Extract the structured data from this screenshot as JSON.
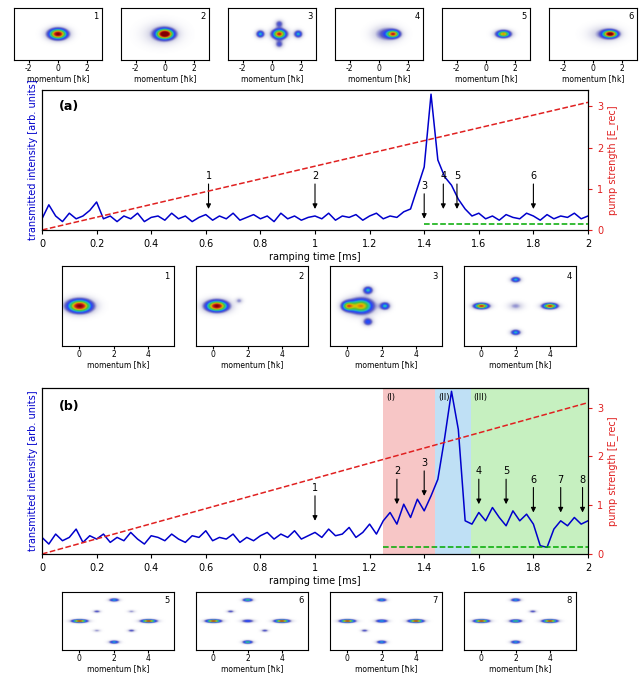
{
  "chart_data": [
    {
      "type": "image",
      "title": "1",
      "xlabel": "momentum [ħk]",
      "xlim": [
        -3,
        3
      ],
      "ylim": [
        -1.5,
        1.5
      ],
      "xticks": [
        -2,
        0,
        2
      ],
      "tick_labels": "x",
      "peaks": [
        [
          0,
          0,
          0.45,
          0.22,
          1.0
        ]
      ]
    },
    {
      "type": "image",
      "title": "2",
      "xlabel": "momentum [ħk]",
      "xlim": [
        -3,
        3
      ],
      "ylim": [
        -1.5,
        1.5
      ],
      "xticks": [
        -2,
        0,
        2
      ],
      "tick_labels": "x",
      "peaks": [
        [
          0,
          0,
          0.4,
          0.2,
          1.0
        ],
        [
          -0.2,
          0,
          0.8,
          0.4,
          0.2
        ]
      ]
    },
    {
      "type": "image",
      "title": "3",
      "xlabel": "momentum [ħk]",
      "xlim": [
        -3,
        3
      ],
      "ylim": [
        -1.5,
        1.5
      ],
      "xticks": [
        -2,
        0,
        2
      ],
      "tick_labels": "x",
      "peaks": [
        [
          0.5,
          0,
          0.35,
          0.2,
          0.9
        ],
        [
          -0.8,
          0,
          0.2,
          0.15,
          0.5
        ],
        [
          1.8,
          0,
          0.2,
          0.15,
          0.5
        ],
        [
          0.5,
          0.6,
          0.2,
          0.15,
          0.3
        ],
        [
          0.5,
          -0.6,
          0.2,
          0.15,
          0.3
        ]
      ]
    },
    {
      "type": "image",
      "title": "4",
      "xlabel": "momentum [ħk]",
      "xlim": [
        -3,
        3
      ],
      "ylim": [
        -1.5,
        1.5
      ],
      "xticks": [
        -2,
        0,
        2
      ],
      "tick_labels": "x",
      "peaks": [
        [
          1,
          0,
          0.3,
          0.15,
          0.7
        ],
        [
          0.5,
          0,
          0.6,
          0.3,
          0.3
        ]
      ]
    },
    {
      "type": "image",
      "title": "5",
      "xlabel": "momentum [ħk]",
      "xlim": [
        -3,
        3
      ],
      "ylim": [
        -1.5,
        1.5
      ],
      "xticks": [
        -2,
        0,
        2
      ],
      "tick_labels": "x",
      "peaks": [
        [
          1.2,
          0,
          0.35,
          0.15,
          0.8
        ]
      ]
    },
    {
      "type": "image",
      "title": "6",
      "xlabel": "momentum [ħk]",
      "xlim": [
        -3,
        3
      ],
      "ylim": [
        -1.5,
        1.5
      ],
      "xticks": [
        -2,
        0,
        2
      ],
      "tick_labels": "x",
      "peaks": [
        [
          1.2,
          0,
          0.35,
          0.15,
          0.9
        ],
        [
          0.8,
          0,
          0.7,
          0.3,
          0.2
        ]
      ]
    },
    {
      "type": "line",
      "title": "(a)",
      "xlabel": "ramping time [ms]",
      "ylabel": "transmitted intensity [arb. units]",
      "y2label": "pump strength [E_rec]",
      "xlim": [
        0,
        2
      ],
      "xticks": [
        0,
        0.2,
        0.4,
        0.6,
        0.8,
        1,
        1.2,
        1.4,
        1.6,
        1.8,
        2
      ],
      "ylim": [
        0,
        1
      ],
      "yticks": [],
      "y2lim": [
        0,
        3.4
      ],
      "y2ticks": [
        0,
        1,
        2,
        3
      ],
      "series": [
        {
          "color": "#0000cc",
          "line_style": "solid",
          "x": [
            0,
            0.025,
            0.05,
            0.075,
            0.1,
            0.125,
            0.15,
            0.175,
            0.2,
            0.225,
            0.25,
            0.275,
            0.3,
            0.325,
            0.35,
            0.375,
            0.4,
            0.425,
            0.45,
            0.475,
            0.5,
            0.525,
            0.55,
            0.575,
            0.6,
            0.625,
            0.65,
            0.675,
            0.7,
            0.725,
            0.75,
            0.775,
            0.8,
            0.825,
            0.85,
            0.875,
            0.9,
            0.925,
            0.95,
            0.975,
            1.0,
            1.025,
            1.05,
            1.075,
            1.1,
            1.125,
            1.15,
            1.175,
            1.2,
            1.225,
            1.25,
            1.275,
            1.3,
            1.325,
            1.35,
            1.375,
            1.4,
            1.425,
            1.45,
            1.475,
            1.5,
            1.525,
            1.55,
            1.575,
            1.6,
            1.625,
            1.65,
            1.675,
            1.7,
            1.725,
            1.75,
            1.775,
            1.8,
            1.825,
            1.85,
            1.875,
            1.9,
            1.925,
            1.95,
            1.975,
            2.0
          ],
          "values": [
            0.08,
            0.18,
            0.1,
            0.06,
            0.12,
            0.08,
            0.1,
            0.14,
            0.2,
            0.08,
            0.1,
            0.06,
            0.1,
            0.08,
            0.12,
            0.06,
            0.09,
            0.1,
            0.07,
            0.12,
            0.08,
            0.1,
            0.06,
            0.09,
            0.11,
            0.07,
            0.1,
            0.08,
            0.12,
            0.07,
            0.09,
            0.11,
            0.08,
            0.1,
            0.06,
            0.12,
            0.08,
            0.1,
            0.07,
            0.09,
            0.1,
            0.08,
            0.12,
            0.07,
            0.1,
            0.09,
            0.11,
            0.07,
            0.1,
            0.12,
            0.08,
            0.1,
            0.09,
            0.13,
            0.15,
            0.3,
            0.45,
            0.97,
            0.5,
            0.38,
            0.32,
            0.22,
            0.15,
            0.1,
            0.12,
            0.08,
            0.1,
            0.07,
            0.11,
            0.09,
            0.08,
            0.12,
            0.1,
            0.07,
            0.11,
            0.08,
            0.1,
            0.09,
            0.12,
            0.08,
            0.1
          ]
        },
        {
          "color": "#e02020",
          "line_style": "dashed",
          "axis": "y2",
          "x": [
            0,
            2
          ],
          "values": [
            0,
            3.1
          ]
        },
        {
          "color": "#00aa00",
          "line_style": "dashed",
          "x": [
            1.4,
            2
          ],
          "values": [
            0.04,
            0.04
          ]
        }
      ],
      "annotations": [
        {
          "text": "1",
          "x": 0.61,
          "y": 0.15
        },
        {
          "text": "2",
          "x": 1.0,
          "y": 0.15
        },
        {
          "text": "3",
          "x": 1.4,
          "y": 0.08
        },
        {
          "text": "4",
          "x": 1.47,
          "y": 0.15
        },
        {
          "text": "5",
          "x": 1.52,
          "y": 0.15
        },
        {
          "text": "6",
          "x": 1.8,
          "y": 0.15
        }
      ],
      "regions": []
    },
    {
      "type": "image",
      "title": "1",
      "xlabel": "momentum [ħk]",
      "xlim": [
        -1,
        5.5
      ],
      "ylim": [
        -3,
        3
      ],
      "xticks": [
        0,
        2,
        4
      ],
      "tick_labels": "x",
      "peaks": [
        [
          0,
          0,
          0.5,
          0.35,
          1.0
        ]
      ]
    },
    {
      "type": "image",
      "title": "2",
      "xlabel": "momentum [ħk]",
      "xlim": [
        -1,
        5.5
      ],
      "ylim": [
        -3,
        3
      ],
      "xticks": [
        0,
        2,
        4
      ],
      "tick_labels": "x",
      "peaks": [
        [
          0.2,
          0,
          0.45,
          0.3,
          1.0
        ],
        [
          1.5,
          0.4,
          0.15,
          0.15,
          0.2
        ]
      ]
    },
    {
      "type": "image",
      "title": "3",
      "xlabel": "momentum [ħk]",
      "xlim": [
        -1,
        5.5
      ],
      "ylim": [
        -3,
        3
      ],
      "xticks": [
        0,
        2,
        4
      ],
      "tick_labels": "x",
      "peaks": [
        [
          0.8,
          0,
          0.5,
          0.4,
          0.8
        ],
        [
          0,
          0,
          0.25,
          0.25,
          0.6
        ],
        [
          2.2,
          0,
          0.2,
          0.2,
          0.5
        ],
        [
          1.2,
          1.2,
          0.2,
          0.2,
          0.5
        ],
        [
          1.2,
          -1.2,
          0.2,
          0.2,
          0.4
        ]
      ]
    },
    {
      "type": "image",
      "title": "4",
      "xlabel": "momentum [ħk]",
      "xlim": [
        -1,
        5.5
      ],
      "ylim": [
        -3,
        3
      ],
      "xticks": [
        0,
        2,
        4
      ],
      "tick_labels": "x",
      "peaks": [
        [
          0,
          0,
          0.3,
          0.15,
          0.9
        ],
        [
          4,
          0,
          0.3,
          0.15,
          0.9
        ],
        [
          2,
          2,
          0.2,
          0.15,
          0.5
        ],
        [
          2,
          -2,
          0.2,
          0.15,
          0.5
        ],
        [
          2,
          0,
          0.3,
          0.2,
          0.2
        ]
      ]
    },
    {
      "type": "line",
      "title": "(b)",
      "xlabel": "ramping time [ms]",
      "ylabel": "transmitted intensity [arb. units]",
      "y2label": "pump strength [E_rec]",
      "xlim": [
        0,
        2
      ],
      "xticks": [
        0,
        0.2,
        0.4,
        0.6,
        0.8,
        1,
        1.2,
        1.4,
        1.6,
        1.8,
        2
      ],
      "ylim": [
        0,
        1
      ],
      "yticks": [],
      "y2lim": [
        0,
        3.4
      ],
      "y2ticks": [
        0,
        1,
        2,
        3
      ],
      "series": [
        {
          "color": "#0000cc",
          "line_style": "solid",
          "x": [
            0,
            0.025,
            0.05,
            0.075,
            0.1,
            0.125,
            0.15,
            0.175,
            0.2,
            0.225,
            0.25,
            0.275,
            0.3,
            0.325,
            0.35,
            0.375,
            0.4,
            0.425,
            0.45,
            0.475,
            0.5,
            0.525,
            0.55,
            0.575,
            0.6,
            0.625,
            0.65,
            0.675,
            0.7,
            0.725,
            0.75,
            0.775,
            0.8,
            0.825,
            0.85,
            0.875,
            0.9,
            0.925,
            0.95,
            0.975,
            1.0,
            1.025,
            1.05,
            1.075,
            1.1,
            1.125,
            1.15,
            1.175,
            1.2,
            1.225,
            1.25,
            1.275,
            1.3,
            1.325,
            1.35,
            1.375,
            1.4,
            1.425,
            1.45,
            1.475,
            1.5,
            1.525,
            1.55,
            1.575,
            1.6,
            1.625,
            1.65,
            1.675,
            1.7,
            1.725,
            1.75,
            1.775,
            1.8,
            1.825,
            1.85,
            1.875,
            1.9,
            1.925,
            1.95,
            1.975,
            2.0
          ],
          "values": [
            0.1,
            0.06,
            0.12,
            0.08,
            0.1,
            0.15,
            0.07,
            0.11,
            0.09,
            0.12,
            0.07,
            0.1,
            0.08,
            0.13,
            0.09,
            0.06,
            0.11,
            0.1,
            0.08,
            0.12,
            0.09,
            0.07,
            0.11,
            0.1,
            0.14,
            0.08,
            0.1,
            0.09,
            0.12,
            0.07,
            0.1,
            0.08,
            0.11,
            0.13,
            0.09,
            0.12,
            0.1,
            0.14,
            0.09,
            0.11,
            0.13,
            0.1,
            0.15,
            0.11,
            0.12,
            0.16,
            0.1,
            0.13,
            0.18,
            0.12,
            0.2,
            0.25,
            0.18,
            0.3,
            0.22,
            0.33,
            0.26,
            0.35,
            0.45,
            0.7,
            0.98,
            0.75,
            0.2,
            0.18,
            0.25,
            0.2,
            0.28,
            0.22,
            0.17,
            0.26,
            0.2,
            0.24,
            0.18,
            0.05,
            0.04,
            0.15,
            0.2,
            0.17,
            0.22,
            0.18,
            0.2
          ]
        },
        {
          "color": "#e02020",
          "line_style": "dashed",
          "axis": "y2",
          "x": [
            0,
            2
          ],
          "values": [
            0,
            3.1
          ]
        },
        {
          "color": "#00aa00",
          "line_style": "dashed",
          "x": [
            1.25,
            2
          ],
          "values": [
            0.04,
            0.04
          ]
        }
      ],
      "annotations": [
        {
          "text": "1",
          "x": 1.0,
          "y": 0.2
        },
        {
          "text": "2",
          "x": 1.3,
          "y": 0.3
        },
        {
          "text": "3",
          "x": 1.4,
          "y": 0.35
        },
        {
          "text": "4",
          "x": 1.6,
          "y": 0.3
        },
        {
          "text": "5",
          "x": 1.7,
          "y": 0.3
        },
        {
          "text": "6",
          "x": 1.8,
          "y": 0.25
        },
        {
          "text": "7",
          "x": 1.9,
          "y": 0.25
        },
        {
          "text": "8",
          "x": 1.98,
          "y": 0.25
        }
      ],
      "regions": [
        {
          "label": "(I)",
          "start": 1.25,
          "end": 1.44,
          "color": "#f7c6c6"
        },
        {
          "label": "(II)",
          "start": 1.44,
          "end": 1.57,
          "color": "#bfe0f5"
        },
        {
          "label": "(III)",
          "start": 1.57,
          "end": 2,
          "color": "#c6f0c0"
        }
      ]
    },
    {
      "type": "image",
      "title": "5",
      "xlabel": "momentum [ħk]",
      "xlim": [
        -1,
        5.5
      ],
      "ylim": [
        -3,
        3
      ],
      "xticks": [
        0,
        2,
        4
      ],
      "tick_labels": "x",
      "peaks": [
        [
          0,
          0,
          0.3,
          0.12,
          0.9
        ],
        [
          4,
          0,
          0.3,
          0.12,
          0.9
        ],
        [
          2,
          2.2,
          0.2,
          0.12,
          0.5
        ],
        [
          2,
          -2.2,
          0.2,
          0.12,
          0.5
        ],
        [
          1,
          1,
          0.15,
          0.1,
          0.3
        ],
        [
          3,
          -1,
          0.15,
          0.1,
          0.3
        ],
        [
          1,
          -1,
          0.15,
          0.1,
          0.2
        ],
        [
          3,
          1,
          0.15,
          0.1,
          0.2
        ]
      ]
    },
    {
      "type": "image",
      "title": "6",
      "xlabel": "momentum [ħk]",
      "xlim": [
        -1,
        5.5
      ],
      "ylim": [
        -3,
        3
      ],
      "xticks": [
        0,
        2,
        4
      ],
      "tick_labels": "x",
      "peaks": [
        [
          0,
          0,
          0.3,
          0.12,
          0.9
        ],
        [
          4,
          0,
          0.3,
          0.12,
          0.9
        ],
        [
          2,
          2.2,
          0.2,
          0.12,
          0.6
        ],
        [
          2,
          -2.2,
          0.2,
          0.12,
          0.6
        ],
        [
          2,
          0,
          0.25,
          0.12,
          0.4
        ],
        [
          1,
          1,
          0.15,
          0.1,
          0.3
        ],
        [
          3,
          -1,
          0.15,
          0.1,
          0.3
        ]
      ]
    },
    {
      "type": "image",
      "title": "7",
      "xlabel": "momentum [ħk]",
      "xlim": [
        -1,
        5.5
      ],
      "ylim": [
        -3,
        3
      ],
      "xticks": [
        0,
        2,
        4
      ],
      "tick_labels": "x",
      "peaks": [
        [
          0,
          0,
          0.3,
          0.12,
          0.9
        ],
        [
          4,
          0,
          0.3,
          0.12,
          0.9
        ],
        [
          2,
          2.2,
          0.2,
          0.12,
          0.5
        ],
        [
          2,
          -2.2,
          0.2,
          0.12,
          0.5
        ],
        [
          2,
          0,
          0.25,
          0.12,
          0.5
        ],
        [
          1,
          -1,
          0.15,
          0.1,
          0.3
        ]
      ]
    },
    {
      "type": "image",
      "title": "8",
      "xlabel": "momentum [ħk]",
      "xlim": [
        -1,
        5.5
      ],
      "ylim": [
        -3,
        3
      ],
      "xticks": [
        0,
        2,
        4
      ],
      "tick_labels": "x",
      "peaks": [
        [
          0,
          0,
          0.3,
          0.12,
          0.9
        ],
        [
          4,
          0,
          0.3,
          0.12,
          0.9
        ],
        [
          2,
          2.2,
          0.2,
          0.12,
          0.5
        ],
        [
          2,
          -2.2,
          0.2,
          0.12,
          0.5
        ],
        [
          2,
          0,
          0.25,
          0.12,
          0.6
        ],
        [
          3,
          1,
          0.15,
          0.1,
          0.3
        ]
      ]
    }
  ]
}
